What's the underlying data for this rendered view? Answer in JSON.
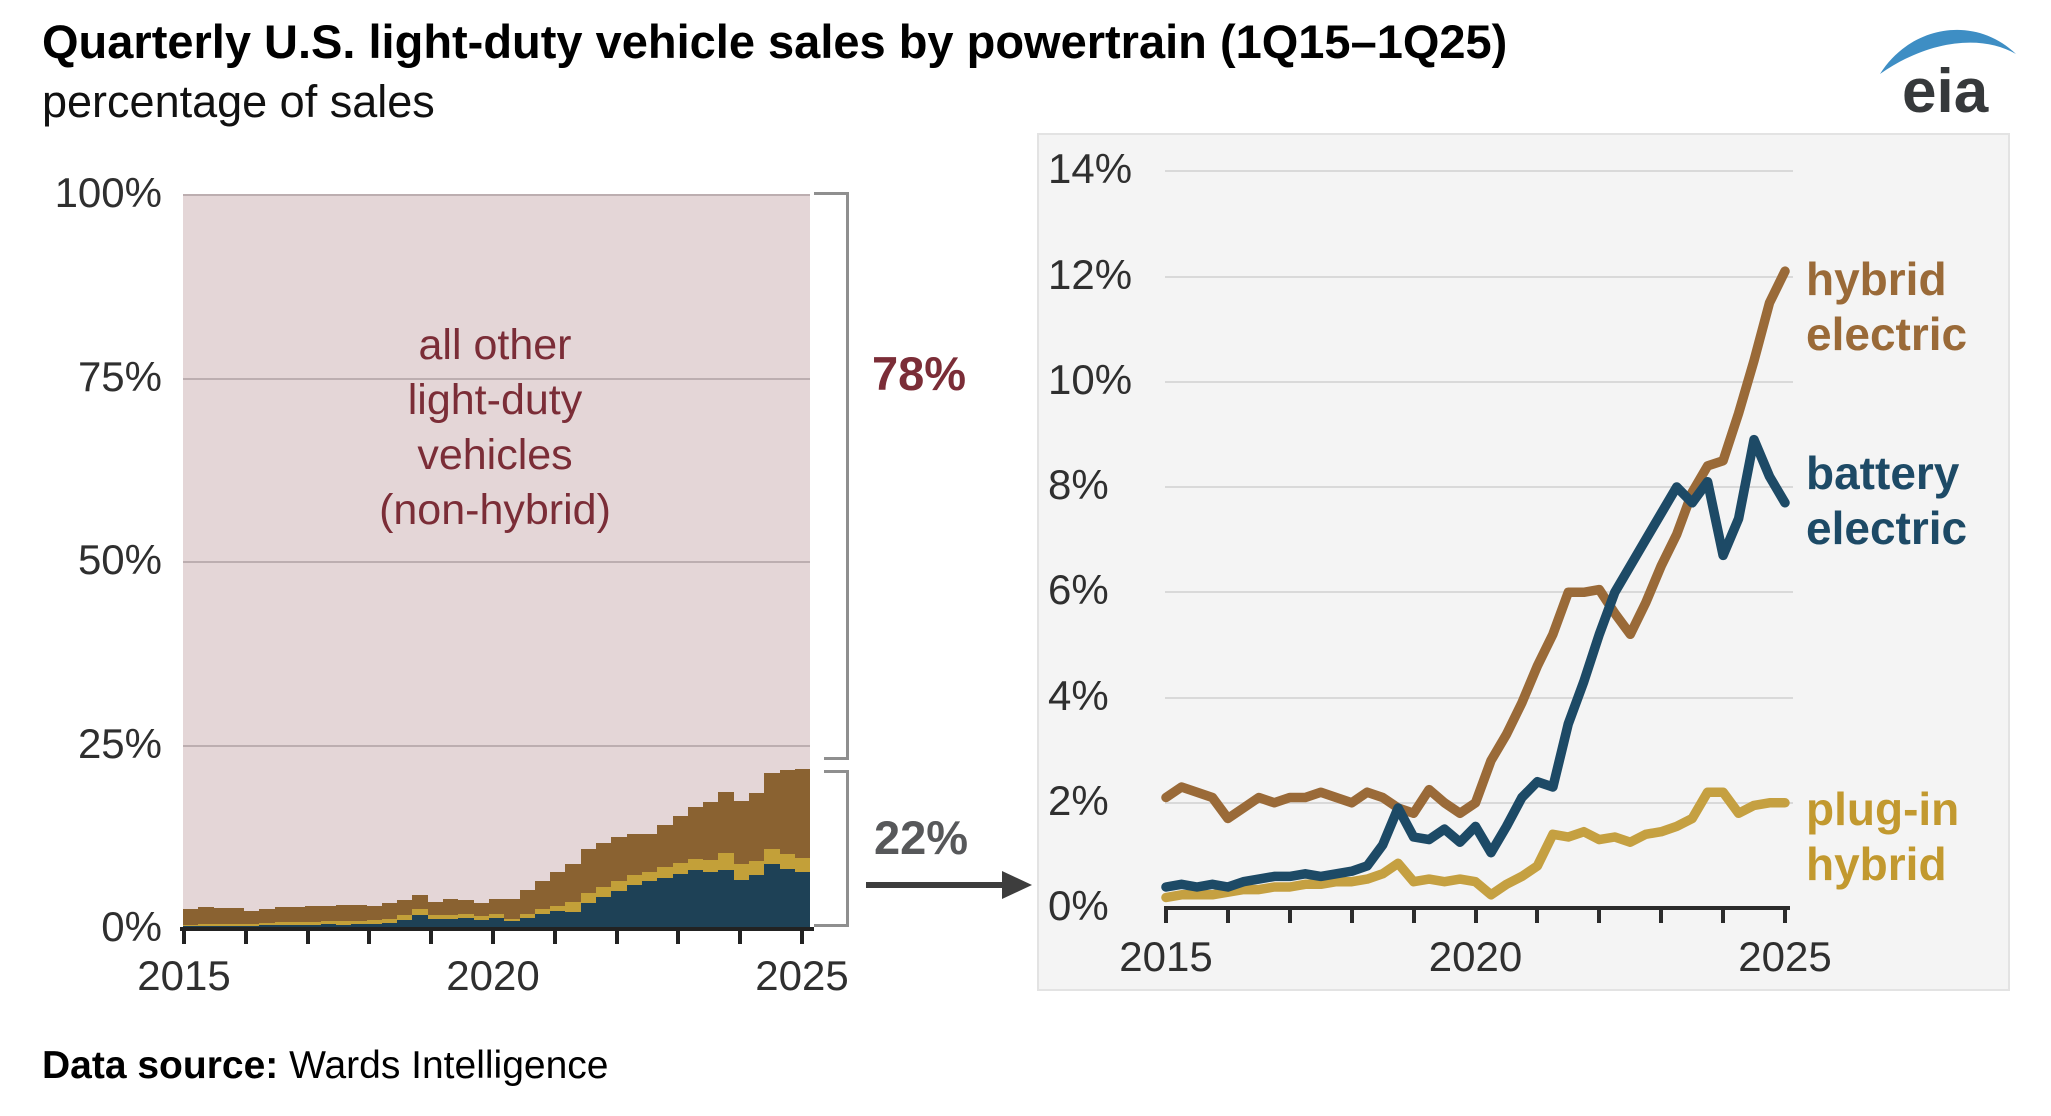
{
  "header": {
    "title": "Quarterly U.S. light-duty vehicle sales by powertrain (1Q15–1Q25)",
    "subtitle": "percentage of sales",
    "logo_text": "eia"
  },
  "footer": {
    "source_label": "Data source:",
    "source_value": "Wards Intelligence"
  },
  "colors": {
    "hybrid_line": "#9a6a38",
    "battery_line": "#1d4a66",
    "plugin_line": "#c5a041",
    "hybrid_bar": "#8a6231",
    "battery_bar": "#1e4156",
    "plugin_bar": "#c3a039",
    "other_area": "#e4d6d7",
    "maroon_text": "#7b2d37",
    "logo_blue": "#3e8ec4"
  },
  "left_chart": {
    "y_tick_labels": [
      "100%",
      "75%",
      "50%",
      "25%",
      "0%"
    ],
    "x_tick_labels": [
      "2015",
      "2020",
      "2025"
    ],
    "area_label_lines": [
      "all other",
      "light-duty",
      "vehicles",
      "(non-hybrid)"
    ],
    "bracket_top_label": "78%",
    "bracket_bottom_label": "22%"
  },
  "right_chart": {
    "y_tick_labels": [
      "14%",
      "12%",
      "10%",
      "8%",
      "6%",
      "4%",
      "2%",
      "0%"
    ],
    "y_tick_values": [
      14,
      12,
      10,
      8,
      6,
      4,
      2,
      0
    ],
    "x_tick_labels": [
      "2015",
      "2020",
      "2025"
    ],
    "series_labels": {
      "hybrid_line1": "hybrid",
      "hybrid_line2": "electric",
      "battery_line1": "battery",
      "battery_line2": "electric",
      "plugin_line1": "plug-in",
      "plugin_line2": "hybrid"
    }
  },
  "chart_data": {
    "type": "line",
    "title": "Quarterly U.S. light-duty vehicle sales by powertrain (1Q15–1Q25)",
    "ylabel": "percentage of sales",
    "x_quarters": [
      "1Q15",
      "2Q15",
      "3Q15",
      "4Q15",
      "1Q16",
      "2Q16",
      "3Q16",
      "4Q16",
      "1Q17",
      "2Q17",
      "3Q17",
      "4Q17",
      "1Q18",
      "2Q18",
      "3Q18",
      "4Q18",
      "1Q19",
      "2Q19",
      "3Q19",
      "4Q19",
      "1Q20",
      "2Q20",
      "3Q20",
      "4Q20",
      "1Q21",
      "2Q21",
      "3Q21",
      "4Q21",
      "1Q22",
      "2Q22",
      "3Q22",
      "4Q22",
      "1Q23",
      "2Q23",
      "3Q23",
      "4Q23",
      "1Q24",
      "2Q24",
      "3Q24",
      "4Q24",
      "1Q25"
    ],
    "right_axis": {
      "ylim": [
        0,
        14
      ],
      "yticks": [
        0,
        2,
        4,
        6,
        8,
        10,
        12,
        14
      ],
      "grid": true
    },
    "left_axis": {
      "ylim": [
        0,
        100
      ],
      "yticks": [
        0,
        25,
        50,
        75,
        100
      ],
      "note": "stacked share of sales; remainder is non-hybrid"
    },
    "series": [
      {
        "name": "hybrid electric",
        "color": "#9a6a38",
        "values": [
          2.1,
          2.3,
          2.2,
          2.1,
          1.7,
          1.9,
          2.1,
          2.0,
          2.1,
          2.1,
          2.2,
          2.1,
          2.0,
          2.2,
          2.1,
          1.9,
          1.8,
          2.25,
          2.0,
          1.8,
          2.0,
          2.8,
          3.3,
          3.9,
          4.6,
          5.2,
          6.0,
          6.0,
          6.05,
          5.6,
          5.2,
          5.8,
          6.5,
          7.1,
          7.9,
          8.4,
          8.5,
          9.4,
          10.4,
          11.5,
          12.1
        ]
      },
      {
        "name": "battery electric",
        "color": "#1d4a66",
        "values": [
          0.4,
          0.45,
          0.4,
          0.45,
          0.4,
          0.5,
          0.55,
          0.6,
          0.6,
          0.65,
          0.6,
          0.65,
          0.7,
          0.8,
          1.2,
          1.9,
          1.35,
          1.3,
          1.5,
          1.25,
          1.55,
          1.05,
          1.55,
          2.1,
          2.4,
          2.3,
          3.5,
          4.3,
          5.2,
          6.0,
          6.5,
          7.0,
          7.5,
          8.0,
          7.7,
          8.1,
          6.7,
          7.4,
          8.9,
          8.2,
          7.7
        ]
      },
      {
        "name": "plug-in hybrid",
        "color": "#c5a041",
        "values": [
          0.2,
          0.25,
          0.25,
          0.25,
          0.3,
          0.35,
          0.35,
          0.4,
          0.4,
          0.45,
          0.45,
          0.5,
          0.5,
          0.55,
          0.65,
          0.85,
          0.5,
          0.55,
          0.5,
          0.55,
          0.5,
          0.25,
          0.45,
          0.6,
          0.8,
          1.4,
          1.35,
          1.45,
          1.3,
          1.35,
          1.25,
          1.4,
          1.45,
          1.55,
          1.7,
          2.2,
          2.2,
          1.8,
          1.95,
          2.0,
          2.0
        ]
      },
      {
        "name": "all other light-duty vehicles (non-hybrid)",
        "color": "#e4d6d7",
        "note": "left stacked chart remainder = 100 minus sum of the three series"
      }
    ],
    "annotations": {
      "other_share_1q25": "78%",
      "electrified_share_1q25": "22%"
    }
  }
}
